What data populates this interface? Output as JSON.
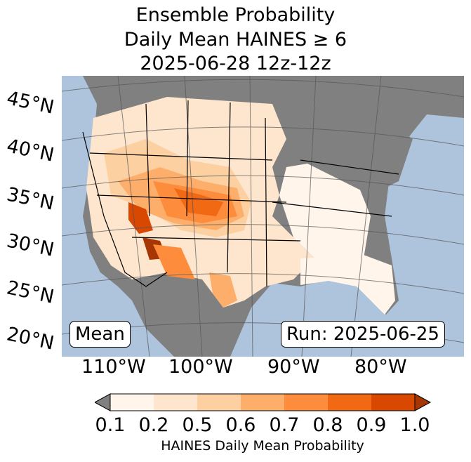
{
  "title": {
    "line1": "Ensemble Probability",
    "line2": "Daily Mean HAINES ≥ 6",
    "line3": "2025-06-28 12z-12z"
  },
  "map": {
    "lat_labels": [
      "45°N",
      "40°N",
      "35°N",
      "30°N",
      "25°N",
      "20°N"
    ],
    "lon_labels": [
      "110°W",
      "100°W",
      "90°W",
      "80°W"
    ],
    "stat_label": "Mean",
    "run_label": "Run: 2025-06-25",
    "colors": {
      "ocean": "#aec4dc",
      "masked_land": "#808080",
      "p01": "#fff5eb",
      "p02": "#fee6ce",
      "p05": "#fdd0a2",
      "p06": "#fdae6b",
      "p07": "#fd8d3c",
      "p08": "#f16913",
      "p09": "#d94801",
      "p10": "#a63603"
    }
  },
  "colorbar": {
    "ticks": [
      "0.1",
      "0.2",
      "0.5",
      "0.6",
      "0.7",
      "0.8",
      "0.9",
      "1.0"
    ],
    "label": "HAINES Daily Mean Probability",
    "under_color": "#808080",
    "bins": [
      "#fff5eb",
      "#fee6ce",
      "#fdd0a2",
      "#fdae6b",
      "#fd8d3c",
      "#f16913",
      "#d94801"
    ],
    "over_color": "#a63603"
  }
}
